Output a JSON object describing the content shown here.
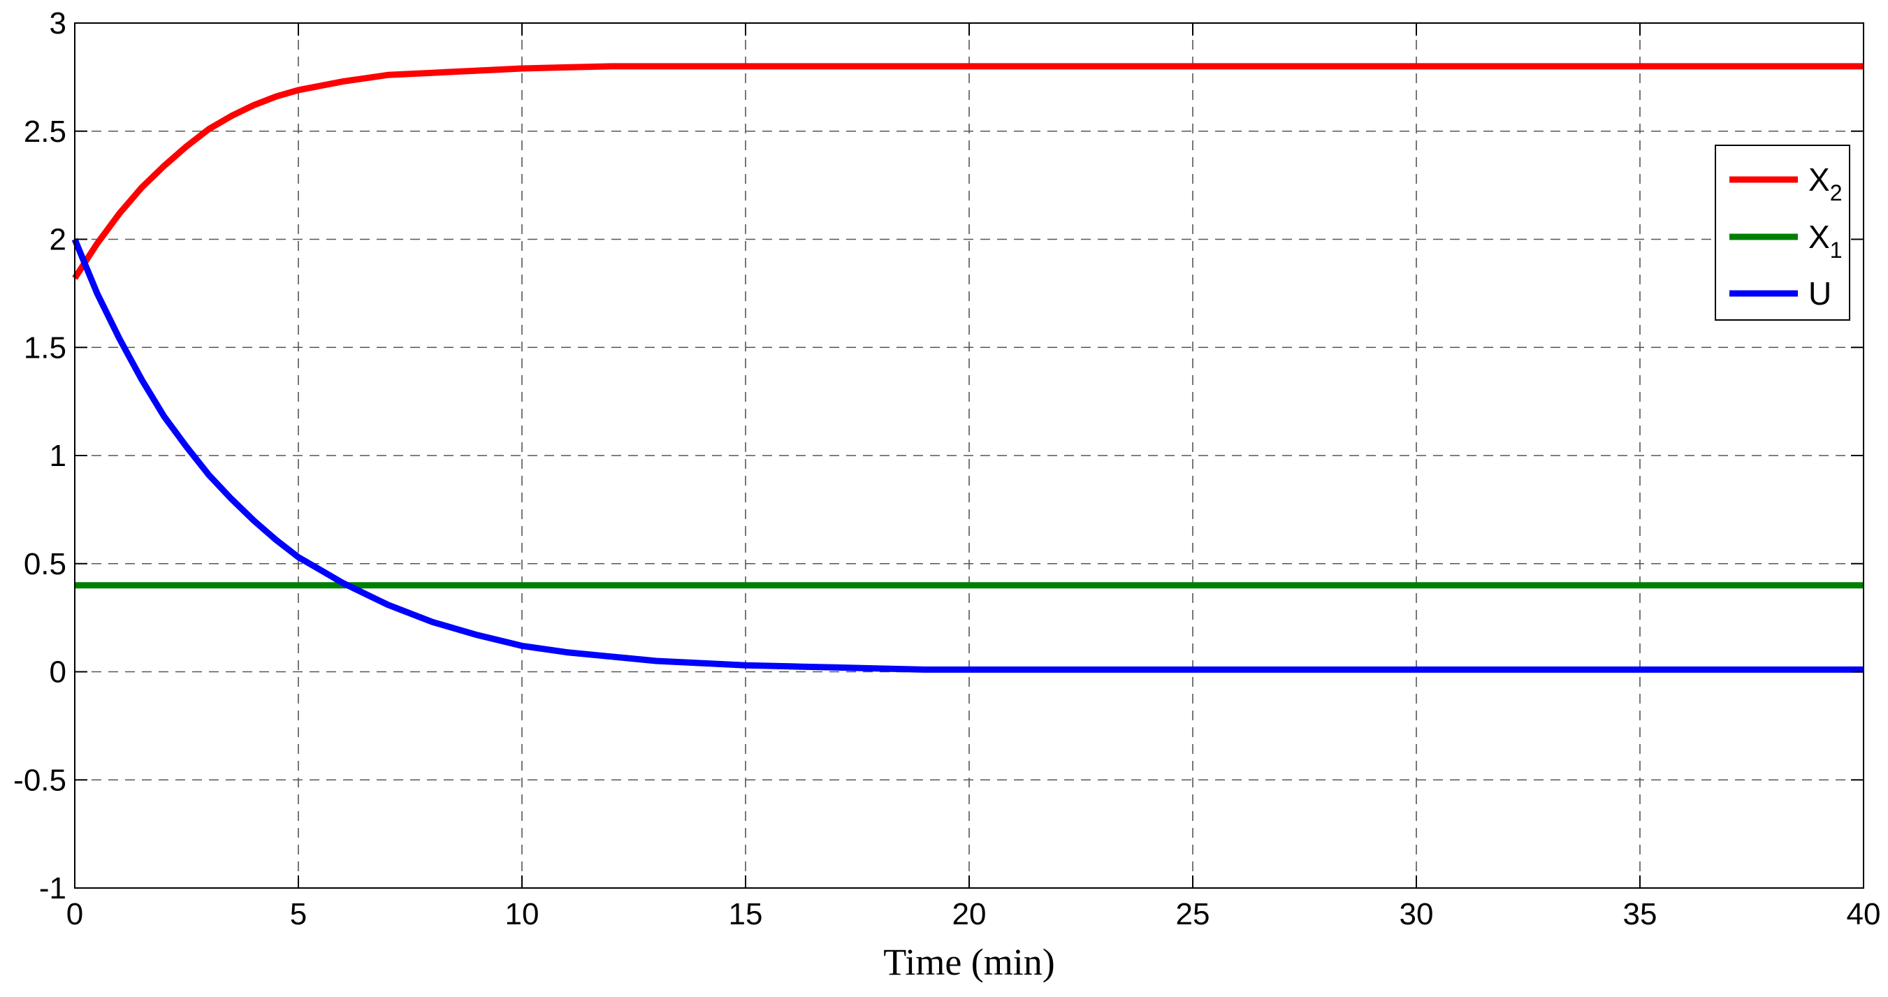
{
  "chart_data": {
    "type": "line",
    "title": "",
    "xlabel": "Time (min)",
    "ylabel": "",
    "xlim": [
      0,
      40
    ],
    "ylim": [
      -1,
      3
    ],
    "xticks": [
      0,
      5,
      10,
      15,
      20,
      25,
      30,
      35,
      40
    ],
    "xtick_labels": [
      "0",
      "5",
      "10",
      "15",
      "20",
      "25",
      "30",
      "35",
      "40"
    ],
    "yticks": [
      -1,
      -0.5,
      0,
      0.5,
      1,
      1.5,
      2,
      2.5,
      3
    ],
    "ytick_labels": [
      "-1",
      "-0.5",
      "0",
      "0.5",
      "1",
      "1.5",
      "2",
      "2.5",
      "3"
    ],
    "grid": true,
    "legend_position": "right",
    "series": [
      {
        "name": "X2",
        "legend_main": "X",
        "legend_sub": "2",
        "color": "#ff0000",
        "x": [
          0,
          0.5,
          1,
          1.5,
          2,
          2.5,
          3,
          3.5,
          4,
          4.5,
          5,
          6,
          7,
          8,
          9,
          10,
          11,
          12,
          14,
          16,
          18,
          20,
          25,
          30,
          35,
          40
        ],
        "y": [
          1.82,
          1.98,
          2.12,
          2.24,
          2.34,
          2.43,
          2.51,
          2.57,
          2.62,
          2.66,
          2.69,
          2.73,
          2.76,
          2.77,
          2.78,
          2.79,
          2.795,
          2.8,
          2.8,
          2.8,
          2.8,
          2.8,
          2.8,
          2.8,
          2.8,
          2.8
        ]
      },
      {
        "name": "X1",
        "legend_main": "X",
        "legend_sub": "1",
        "color": "#008000",
        "x": [
          0,
          40
        ],
        "y": [
          0.4,
          0.4
        ]
      },
      {
        "name": "U",
        "legend_main": "U",
        "legend_sub": "",
        "color": "#0000ff",
        "x": [
          0,
          0.5,
          1,
          1.5,
          2,
          2.5,
          3,
          3.5,
          4,
          4.5,
          5,
          5.5,
          6,
          7,
          8,
          9,
          10,
          11,
          12,
          13,
          14,
          15,
          16,
          17,
          18,
          19,
          20,
          25,
          30,
          35,
          40
        ],
        "y": [
          2.0,
          1.75,
          1.54,
          1.35,
          1.18,
          1.04,
          0.91,
          0.8,
          0.7,
          0.61,
          0.53,
          0.47,
          0.41,
          0.31,
          0.23,
          0.17,
          0.12,
          0.09,
          0.07,
          0.05,
          0.04,
          0.03,
          0.025,
          0.02,
          0.015,
          0.01,
          0.01,
          0.01,
          0.01,
          0.01,
          0.01
        ]
      }
    ]
  }
}
